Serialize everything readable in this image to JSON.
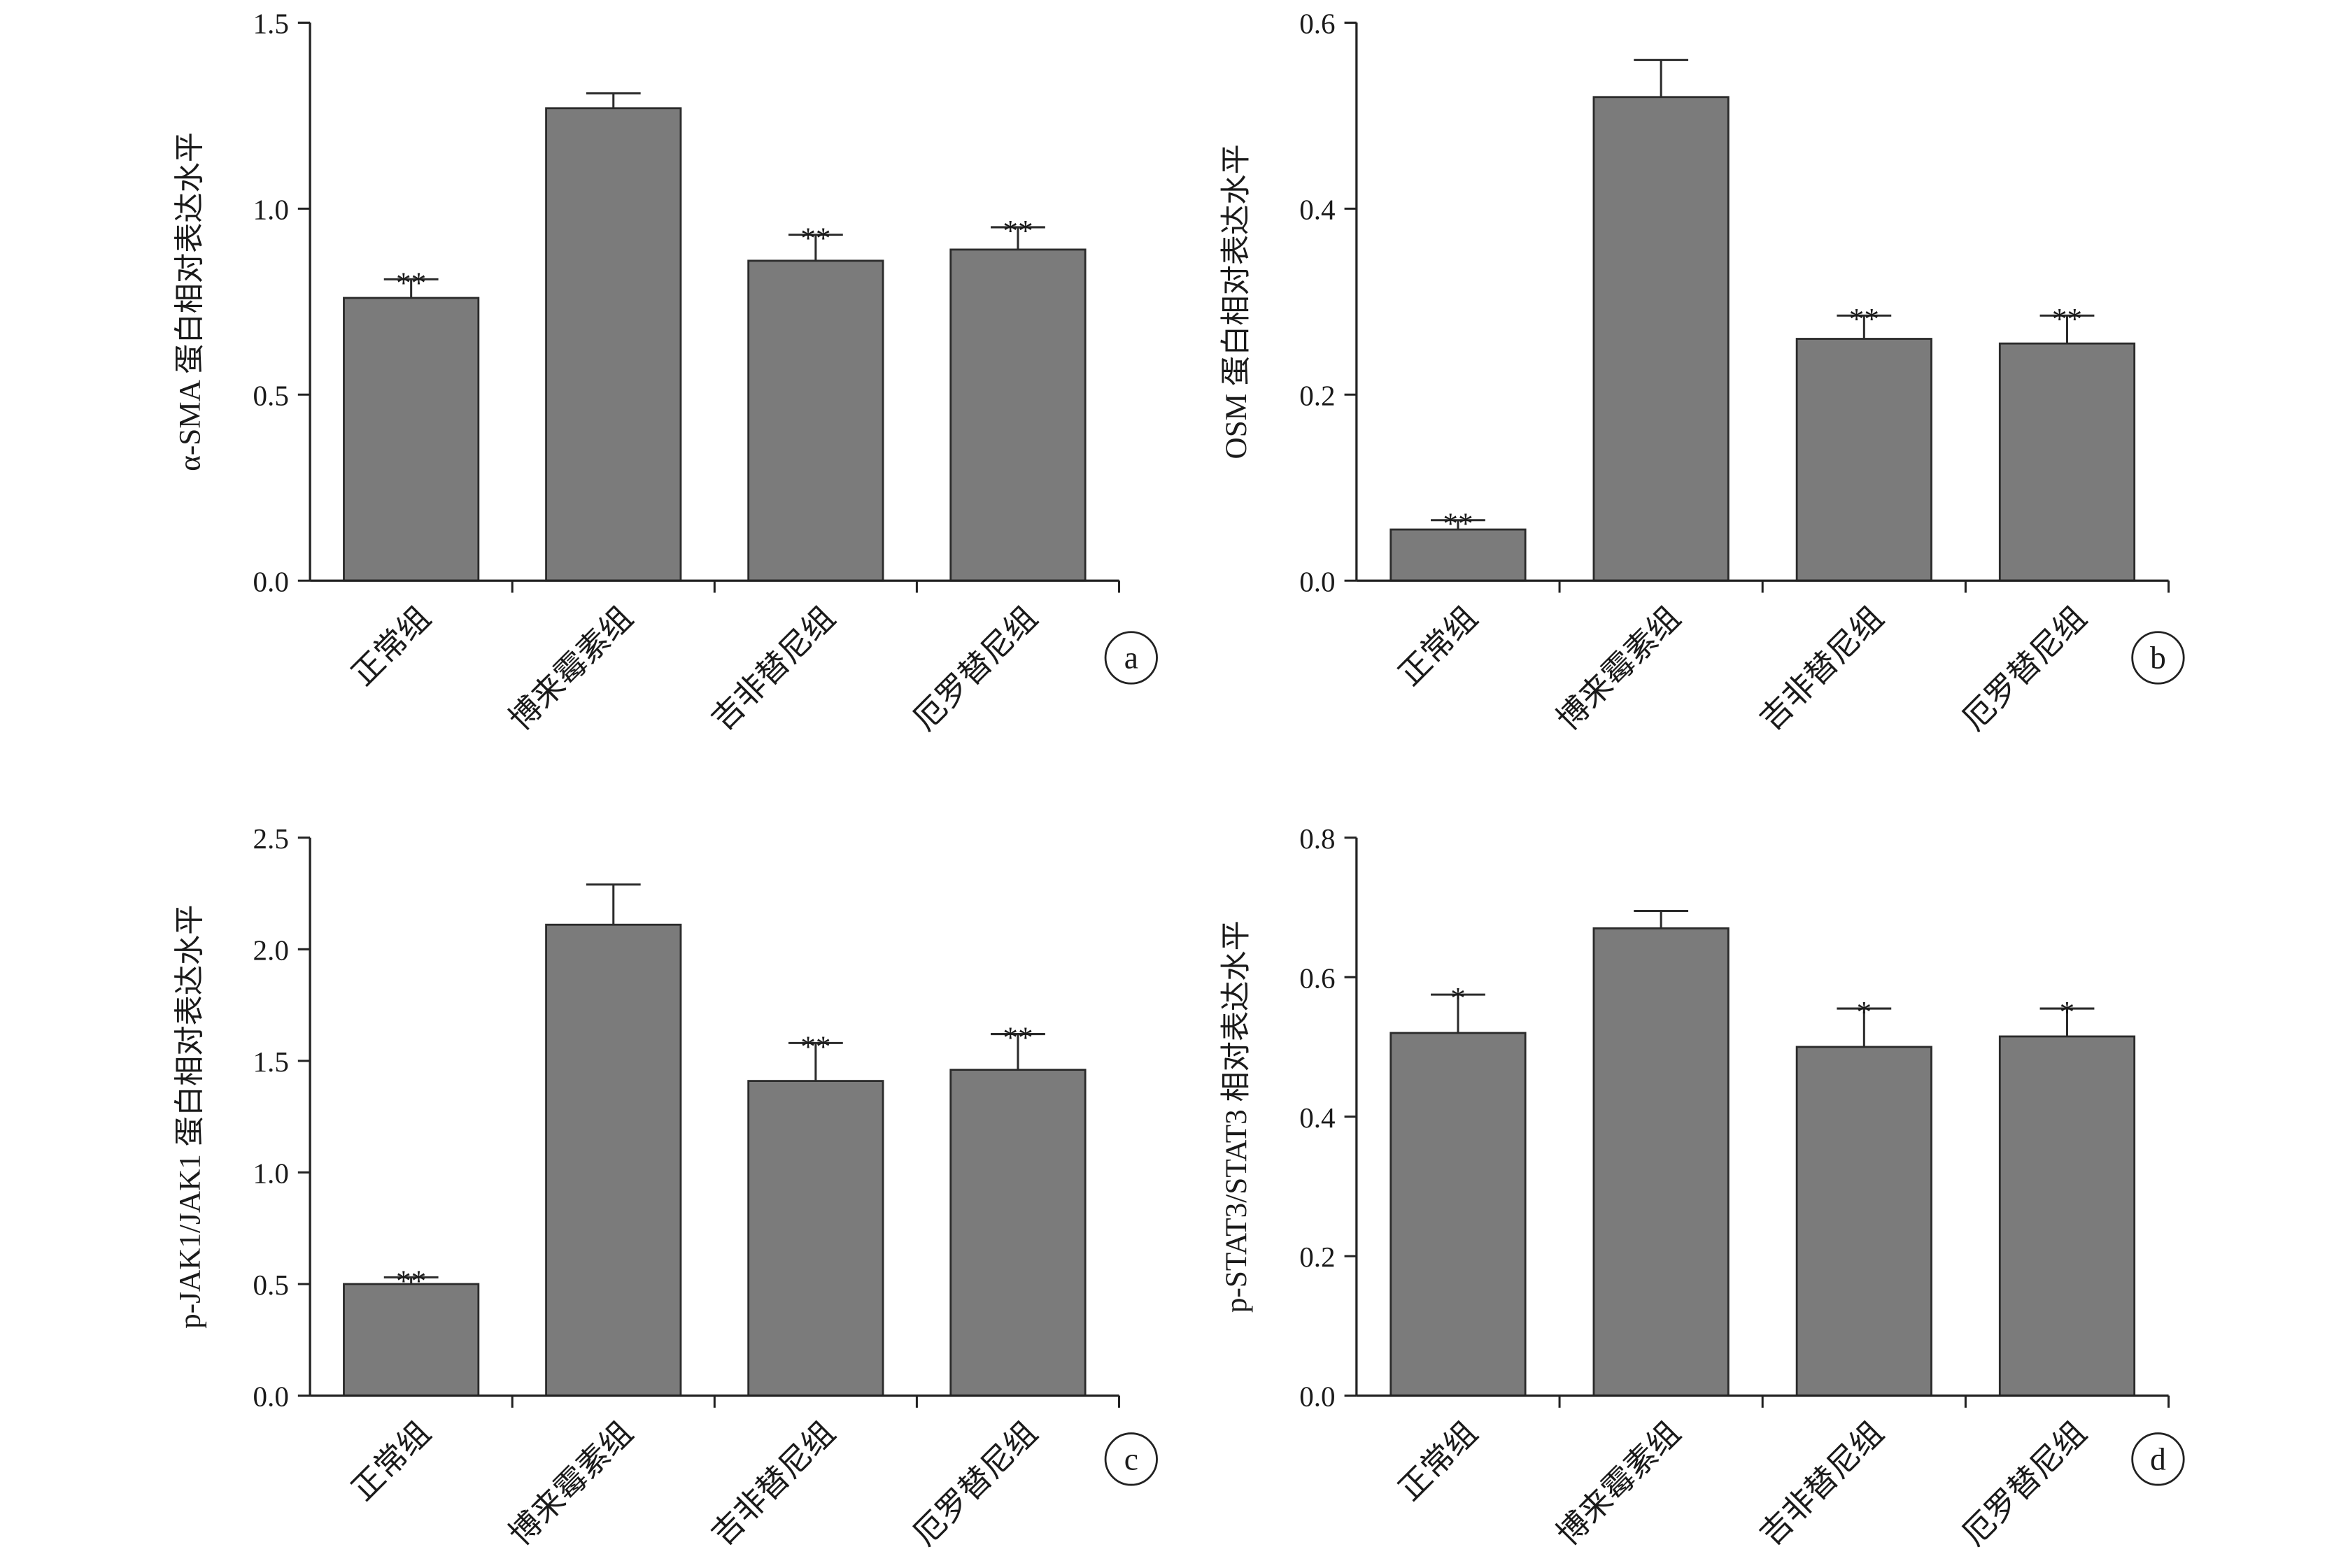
{
  "chart_data": [
    {
      "type": "bar",
      "panel_label": "a",
      "ylabel": "α-SMA 蛋白相对表达水平",
      "categories": [
        "正常组",
        "博来霉素组",
        "吉非替尼组",
        "厄罗替尼组"
      ],
      "values": [
        0.76,
        1.27,
        0.86,
        0.89
      ],
      "errors": [
        0.05,
        0.04,
        0.07,
        0.06
      ],
      "significance": [
        "**",
        "",
        "**",
        "**"
      ],
      "ylim": [
        0,
        1.5
      ],
      "yticks": [
        "0.0",
        "0.5",
        "1.0",
        "1.5"
      ],
      "grid": false,
      "colors": {
        "bar": "#7b7b7b",
        "edge": "#2b2b2b",
        "axis": "#222222"
      }
    },
    {
      "type": "bar",
      "panel_label": "b",
      "ylabel": "OSM 蛋白相对表达水平",
      "categories": [
        "正常组",
        "博来霉素组",
        "吉非替尼组",
        "厄罗替尼组"
      ],
      "values": [
        0.055,
        0.52,
        0.26,
        0.255
      ],
      "errors": [
        0.01,
        0.04,
        0.025,
        0.03
      ],
      "significance": [
        "**",
        "",
        "**",
        "**"
      ],
      "ylim": [
        0,
        0.6
      ],
      "yticks": [
        "0.0",
        "0.2",
        "0.4",
        "0.6"
      ],
      "grid": false,
      "colors": {
        "bar": "#7b7b7b",
        "edge": "#2b2b2b",
        "axis": "#222222"
      }
    },
    {
      "type": "bar",
      "panel_label": "c",
      "ylabel": "p-JAK1/JAK1 蛋白相对表达水平",
      "categories": [
        "正常组",
        "博来霉素组",
        "吉非替尼组",
        "厄罗替尼组"
      ],
      "values": [
        0.5,
        2.11,
        1.41,
        1.46
      ],
      "errors": [
        0.03,
        0.18,
        0.17,
        0.16
      ],
      "significance": [
        "**",
        "",
        "**",
        "**"
      ],
      "ylim": [
        0,
        2.5
      ],
      "yticks": [
        "0.0",
        "0.5",
        "1.0",
        "1.5",
        "2.0",
        "2.5"
      ],
      "grid": false,
      "colors": {
        "bar": "#7b7b7b",
        "edge": "#2b2b2b",
        "axis": "#222222"
      }
    },
    {
      "type": "bar",
      "panel_label": "d",
      "ylabel": "p-STAT3/STAT3 相对表达水平",
      "categories": [
        "正常组",
        "博来霉素组",
        "吉非替尼组",
        "厄罗替尼组"
      ],
      "values": [
        0.52,
        0.67,
        0.5,
        0.515
      ],
      "errors": [
        0.055,
        0.025,
        0.055,
        0.04
      ],
      "significance": [
        "*",
        "",
        "*",
        "*"
      ],
      "ylim": [
        0,
        0.8
      ],
      "yticks": [
        "0.0",
        "0.2",
        "0.4",
        "0.6",
        "0.8"
      ],
      "grid": false,
      "colors": {
        "bar": "#7b7b7b",
        "edge": "#2b2b2b",
        "axis": "#222222"
      }
    }
  ]
}
